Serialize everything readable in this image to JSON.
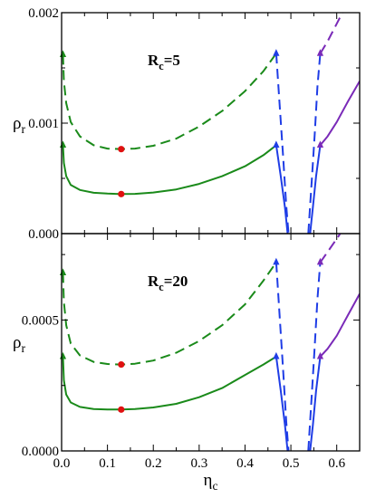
{
  "chart_data": [
    {
      "type": "line",
      "panel_label": {
        "main": "R",
        "sub": "c",
        "rest": "=5"
      },
      "ylabel": {
        "main": "ρ",
        "sub": "r"
      },
      "xlim": [
        0,
        0.65
      ],
      "ylim": [
        0,
        0.002
      ],
      "yticks": [
        {
          "v": 0,
          "label": "0.000"
        },
        {
          "v": 0.001,
          "label": "0.001"
        },
        {
          "v": 0.002,
          "label": "0.002"
        }
      ],
      "show_x_ticklabels": false,
      "series": [
        {
          "key": "green-dashed",
          "color": "#1a8a1a",
          "style": "dashed",
          "x": [
            0.003,
            0.005,
            0.01,
            0.02,
            0.04,
            0.07,
            0.1,
            0.13,
            0.16,
            0.2,
            0.25,
            0.3,
            0.35,
            0.4,
            0.44,
            0.468
          ],
          "y": [
            0.00162,
            0.00138,
            0.00118,
            0.00101,
            0.00088,
            0.0008,
            0.00077,
            0.000765,
            0.00077,
            0.000795,
            0.00086,
            0.00097,
            0.00111,
            0.00129,
            0.00147,
            0.00163
          ]
        },
        {
          "key": "green-solid",
          "color": "#1a8a1a",
          "style": "solid",
          "x": [
            0.003,
            0.005,
            0.01,
            0.02,
            0.04,
            0.07,
            0.1,
            0.13,
            0.16,
            0.2,
            0.25,
            0.3,
            0.35,
            0.4,
            0.44,
            0.468
          ],
          "y": [
            0.0008,
            0.00064,
            0.00052,
            0.00044,
            0.000395,
            0.00037,
            0.000362,
            0.000358,
            0.00036,
            0.000372,
            0.0004,
            0.00045,
            0.00052,
            0.00061,
            0.00071,
            0.0008
          ]
        },
        {
          "key": "blue-dashed",
          "color": "#1f3de6",
          "style": "dashed",
          "x": [
            0.468,
            0.475,
            0.483,
            0.49,
            0.495
          ],
          "y": [
            0.00163,
            0.0012,
            0.0007,
            0.00025,
            0.0
          ]
        },
        {
          "key": "blue-dashed",
          "color": "#1f3de6",
          "style": "dashed",
          "x": [
            0.538,
            0.545,
            0.552,
            0.558,
            0.564
          ],
          "y": [
            0.0,
            0.00045,
            0.0009,
            0.00133,
            0.00163
          ]
        },
        {
          "key": "blue-solid",
          "color": "#1f3de6",
          "style": "solid",
          "x": [
            0.468,
            0.478,
            0.487,
            0.493
          ],
          "y": [
            0.0008,
            0.00052,
            0.00024,
            0.0
          ]
        },
        {
          "key": "blue-solid",
          "color": "#1f3de6",
          "style": "solid",
          "x": [
            0.542,
            0.548,
            0.555,
            0.564
          ],
          "y": [
            0.0,
            0.00024,
            0.00052,
            0.0008
          ]
        },
        {
          "key": "purple-dashed",
          "color": "#7a2ab8",
          "style": "dashed",
          "x": [
            0.564,
            0.58,
            0.6,
            0.62
          ],
          "y": [
            0.00163,
            0.00174,
            0.0019,
            0.00206
          ]
        },
        {
          "key": "purple-solid",
          "color": "#7a2ab8",
          "style": "solid",
          "x": [
            0.564,
            0.58,
            0.6,
            0.625,
            0.65
          ],
          "y": [
            0.0008,
            0.00088,
            0.00101,
            0.0012,
            0.00138
          ]
        }
      ],
      "markers": [
        {
          "shape": "triangle",
          "color": "#1a8a1a",
          "x": 0.003,
          "y": 0.00162
        },
        {
          "shape": "triangle",
          "color": "#1a8a1a",
          "x": 0.003,
          "y": 0.0008
        },
        {
          "shape": "circle",
          "color": "#e01010",
          "x": 0.13,
          "y": 0.000765
        },
        {
          "shape": "circle",
          "color": "#e01010",
          "x": 0.13,
          "y": 0.000358
        },
        {
          "shape": "triangle",
          "color": "#1f3de6",
          "x": 0.468,
          "y": 0.00163
        },
        {
          "shape": "triangle",
          "color": "#1f3de6",
          "x": 0.468,
          "y": 0.0008
        },
        {
          "shape": "triangle",
          "color": "#7a2ab8",
          "x": 0.564,
          "y": 0.00163
        },
        {
          "shape": "triangle",
          "color": "#7a2ab8",
          "x": 0.564,
          "y": 0.0008
        }
      ]
    },
    {
      "type": "line",
      "panel_label": {
        "main": "R",
        "sub": "c",
        "rest": "=20"
      },
      "ylabel": {
        "main": "ρ",
        "sub": "r"
      },
      "xlabel": {
        "main": "η",
        "sub": "c"
      },
      "xlim": [
        0,
        0.65
      ],
      "ylim": [
        0,
        0.00083
      ],
      "yticks": [
        {
          "v": 0,
          "label": "0.0000"
        },
        {
          "v": 0.0005,
          "label": "0.0005"
        }
      ],
      "xticks": [
        {
          "v": 0.0,
          "label": "0.0"
        },
        {
          "v": 0.1,
          "label": "0.1"
        },
        {
          "v": 0.2,
          "label": "0.2"
        },
        {
          "v": 0.3,
          "label": "0.3"
        },
        {
          "v": 0.4,
          "label": "0.4"
        },
        {
          "v": 0.5,
          "label": "0.5"
        },
        {
          "v": 0.6,
          "label": "0.6"
        }
      ],
      "show_x_ticklabels": true,
      "series": [
        {
          "key": "green-dashed",
          "color": "#1a8a1a",
          "style": "dashed",
          "x": [
            0.003,
            0.005,
            0.01,
            0.02,
            0.04,
            0.07,
            0.1,
            0.13,
            0.16,
            0.2,
            0.25,
            0.3,
            0.35,
            0.4,
            0.44,
            0.468
          ],
          "y": [
            0.00068,
            0.00057,
            0.00048,
            0.00041,
            0.000365,
            0.00034,
            0.000332,
            0.00033,
            0.000333,
            0.000345,
            0.000375,
            0.00042,
            0.00048,
            0.00056,
            0.00065,
            0.00072
          ]
        },
        {
          "key": "green-solid",
          "color": "#1a8a1a",
          "style": "solid",
          "x": [
            0.003,
            0.005,
            0.01,
            0.02,
            0.04,
            0.07,
            0.1,
            0.13,
            0.16,
            0.2,
            0.25,
            0.3,
            0.35,
            0.4,
            0.44,
            0.468
          ],
          "y": [
            0.00036,
            0.00027,
            0.000215,
            0.000185,
            0.000168,
            0.00016,
            0.000158,
            0.000158,
            0.00016,
            0.000166,
            0.00018,
            0.000205,
            0.00024,
            0.00029,
            0.00033,
            0.00036
          ]
        },
        {
          "key": "blue-dashed",
          "color": "#1f3de6",
          "style": "dashed",
          "x": [
            0.468,
            0.475,
            0.483,
            0.49,
            0.495
          ],
          "y": [
            0.00072,
            0.00053,
            0.00031,
            0.00011,
            0.0
          ]
        },
        {
          "key": "blue-dashed",
          "color": "#1f3de6",
          "style": "dashed",
          "x": [
            0.538,
            0.545,
            0.552,
            0.558,
            0.564
          ],
          "y": [
            0.0,
            0.0002,
            0.0004,
            0.00058,
            0.00072
          ]
        },
        {
          "key": "blue-solid",
          "color": "#1f3de6",
          "style": "solid",
          "x": [
            0.468,
            0.478,
            0.487,
            0.493
          ],
          "y": [
            0.00036,
            0.00023,
            0.0001,
            0.0
          ]
        },
        {
          "key": "blue-solid",
          "color": "#1f3de6",
          "style": "solid",
          "x": [
            0.542,
            0.548,
            0.555,
            0.564
          ],
          "y": [
            0.0,
            0.0001,
            0.00023,
            0.00036
          ]
        },
        {
          "key": "purple-dashed",
          "color": "#7a2ab8",
          "style": "dashed",
          "x": [
            0.564,
            0.58,
            0.6,
            0.615
          ],
          "y": [
            0.00072,
            0.00076,
            0.00081,
            0.00085
          ]
        },
        {
          "key": "purple-solid",
          "color": "#7a2ab8",
          "style": "solid",
          "x": [
            0.564,
            0.58,
            0.6,
            0.625,
            0.65
          ],
          "y": [
            0.00036,
            0.00039,
            0.00044,
            0.00052,
            0.0006
          ]
        }
      ],
      "markers": [
        {
          "shape": "triangle",
          "color": "#1a8a1a",
          "x": 0.003,
          "y": 0.00068
        },
        {
          "shape": "triangle",
          "color": "#1a8a1a",
          "x": 0.003,
          "y": 0.00036
        },
        {
          "shape": "circle",
          "color": "#e01010",
          "x": 0.13,
          "y": 0.00033
        },
        {
          "shape": "circle",
          "color": "#e01010",
          "x": 0.13,
          "y": 0.000158
        },
        {
          "shape": "triangle",
          "color": "#1f3de6",
          "x": 0.468,
          "y": 0.00072
        },
        {
          "shape": "triangle",
          "color": "#1f3de6",
          "x": 0.468,
          "y": 0.00036
        },
        {
          "shape": "triangle",
          "color": "#7a2ab8",
          "x": 0.564,
          "y": 0.00072
        },
        {
          "shape": "triangle",
          "color": "#7a2ab8",
          "x": 0.564,
          "y": 0.00036
        }
      ]
    }
  ]
}
